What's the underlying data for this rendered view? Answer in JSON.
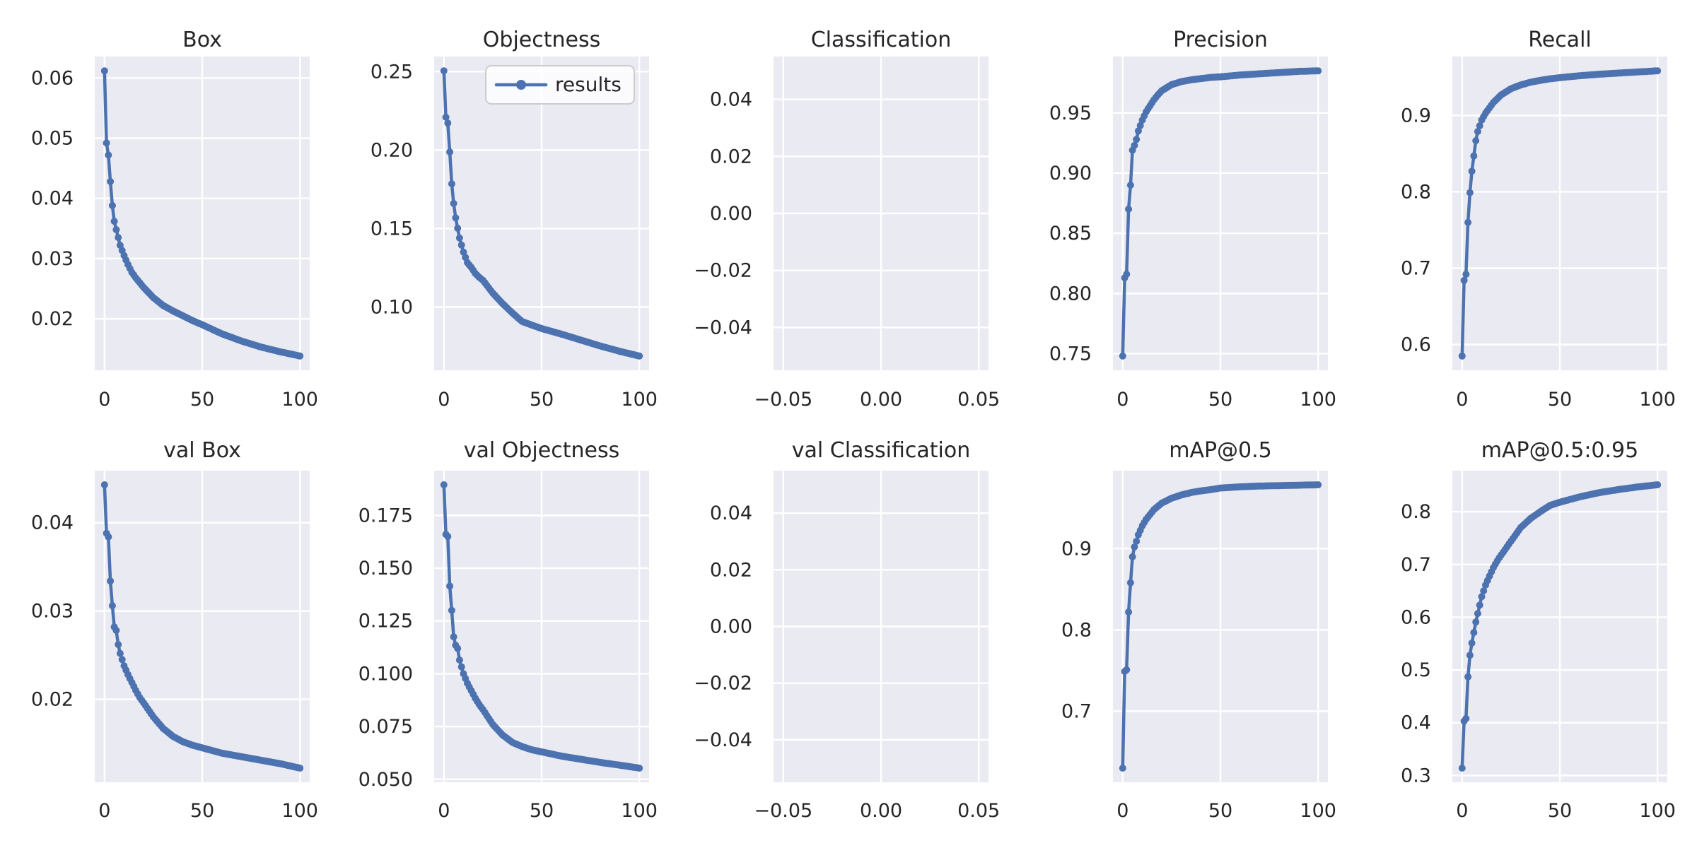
{
  "figure": {
    "kind": "training-results-figure",
    "rows": 2,
    "cols": 5,
    "background": "#ffffff"
  },
  "colors": {
    "line": "#4c72b0",
    "axes_background": "#eaeaf2",
    "grid": "#ffffff",
    "text": "#262626",
    "legend_border": "#cccccc",
    "legend_fill": "rgba(255,255,255,0.8)"
  },
  "legend": {
    "label": "results"
  },
  "chart_data": [
    {
      "id": "box",
      "type": "line",
      "title": "Box",
      "row": 0,
      "col": 0,
      "xlim": [
        -5,
        105
      ],
      "ylim": [
        0.01143,
        0.06357
      ],
      "xticks": {
        "values": [
          0,
          50,
          100
        ],
        "labels": [
          "0",
          "50",
          "100"
        ]
      },
      "yticks": {
        "values": [
          0.02,
          0.03,
          0.04,
          0.05,
          0.06
        ],
        "labels": [
          "0.02",
          "0.03",
          "0.04",
          "0.05",
          "0.06"
        ]
      },
      "legend": false,
      "series": [
        {
          "name": "results",
          "n_points": 101,
          "x": [
            0,
            1,
            2,
            3,
            4,
            5,
            6,
            7,
            8,
            10,
            12,
            14,
            16,
            18,
            20,
            25,
            30,
            35,
            40,
            45,
            50,
            60,
            70,
            80,
            90,
            100
          ],
          "y": [
            0.0612,
            0.0492,
            0.0472,
            0.0428,
            0.0388,
            0.0362,
            0.0348,
            0.0335,
            0.0322,
            0.0305,
            0.029,
            0.0277,
            0.0268,
            0.026,
            0.0252,
            0.0235,
            0.0222,
            0.0213,
            0.0205,
            0.0197,
            0.019,
            0.0175,
            0.0163,
            0.0153,
            0.0145,
            0.0138
          ]
        }
      ]
    },
    {
      "id": "objectness",
      "type": "line",
      "title": "Objectness",
      "row": 0,
      "col": 1,
      "xlim": [
        -5,
        105
      ],
      "ylim": [
        0.059715,
        0.259585
      ],
      "xticks": {
        "values": [
          0,
          50,
          100
        ],
        "labels": [
          "0",
          "50",
          "100"
        ]
      },
      "yticks": {
        "values": [
          0.1,
          0.15,
          0.2,
          0.25
        ],
        "labels": [
          "0.10",
          "0.15",
          "0.20",
          "0.25"
        ]
      },
      "legend": true,
      "series": [
        {
          "name": "results",
          "n_points": 101,
          "x": [
            0,
            1,
            2,
            3,
            4,
            5,
            6,
            7,
            8,
            10,
            12,
            14,
            16,
            18,
            20,
            25,
            30,
            35,
            40,
            45,
            50,
            60,
            70,
            80,
            90,
            100
          ],
          "y": [
            0.2505,
            0.2209,
            0.2172,
            0.1988,
            0.1785,
            0.166,
            0.1568,
            0.1502,
            0.144,
            0.135,
            0.1283,
            0.1253,
            0.1215,
            0.119,
            0.117,
            0.1089,
            0.1022,
            0.0963,
            0.0908,
            0.0885,
            0.0863,
            0.0828,
            0.079,
            0.0752,
            0.0718,
            0.0688
          ]
        }
      ]
    },
    {
      "id": "classification",
      "type": "line",
      "title": "Classification",
      "row": 0,
      "col": 2,
      "xlim": [
        -0.055,
        0.055
      ],
      "ylim": [
        -0.055,
        0.055
      ],
      "xticks": {
        "values": [
          -0.05,
          0.0,
          0.05
        ],
        "labels": [
          "−0.05",
          "0.00",
          "0.05"
        ]
      },
      "yticks": {
        "values": [
          -0.04,
          -0.02,
          0.0,
          0.02,
          0.04
        ],
        "labels": [
          "−0.04",
          "−0.02",
          "0.00",
          "0.02",
          "0.04"
        ]
      },
      "legend": false,
      "series": []
    },
    {
      "id": "precision",
      "type": "line",
      "title": "Precision",
      "row": 0,
      "col": 3,
      "xlim": [
        -5,
        105
      ],
      "ylim": [
        0.73615,
        0.99685
      ],
      "xticks": {
        "values": [
          0,
          50,
          100
        ],
        "labels": [
          "0",
          "50",
          "100"
        ]
      },
      "yticks": {
        "values": [
          0.75,
          0.8,
          0.85,
          0.9,
          0.95
        ],
        "labels": [
          "0.75",
          "0.80",
          "0.85",
          "0.90",
          "0.95"
        ]
      },
      "legend": false,
      "series": [
        {
          "name": "results",
          "n_points": 101,
          "x": [
            0,
            1,
            2,
            3,
            4,
            5,
            6,
            7,
            8,
            10,
            12,
            14,
            16,
            18,
            20,
            25,
            30,
            35,
            40,
            45,
            50,
            60,
            70,
            80,
            90,
            100
          ],
          "y": [
            0.748,
            0.813,
            0.816,
            0.87,
            0.89,
            0.919,
            0.923,
            0.928,
            0.935,
            0.944,
            0.951,
            0.956,
            0.961,
            0.965,
            0.9685,
            0.9735,
            0.976,
            0.9775,
            0.9785,
            0.9795,
            0.98,
            0.9815,
            0.9825,
            0.9835,
            0.9845,
            0.985
          ]
        }
      ]
    },
    {
      "id": "recall",
      "type": "line",
      "title": "Recall",
      "row": 0,
      "col": 4,
      "xlim": [
        -5,
        105
      ],
      "ylim": [
        0.566325,
        0.977175
      ],
      "xticks": {
        "values": [
          0,
          50,
          100
        ],
        "labels": [
          "0",
          "50",
          "100"
        ]
      },
      "yticks": {
        "values": [
          0.6,
          0.7,
          0.8,
          0.9
        ],
        "labels": [
          "0.6",
          "0.7",
          "0.8",
          "0.9"
        ]
      },
      "legend": false,
      "series": [
        {
          "name": "results",
          "n_points": 101,
          "x": [
            0,
            1,
            2,
            3,
            4,
            5,
            6,
            7,
            8,
            10,
            12,
            14,
            16,
            18,
            20,
            25,
            30,
            35,
            40,
            45,
            50,
            60,
            70,
            80,
            90,
            100
          ],
          "y": [
            0.585,
            0.684,
            0.692,
            0.76,
            0.799,
            0.827,
            0.847,
            0.867,
            0.879,
            0.894,
            0.903,
            0.91,
            0.917,
            0.922,
            0.927,
            0.935,
            0.94,
            0.9435,
            0.946,
            0.948,
            0.9495,
            0.952,
            0.954,
            0.9555,
            0.957,
            0.9585
          ]
        }
      ]
    },
    {
      "id": "val-box",
      "type": "line",
      "title": "val Box",
      "row": 1,
      "col": 0,
      "xlim": [
        -5,
        105
      ],
      "ylim": [
        0.010595,
        0.045905
      ],
      "xticks": {
        "values": [
          0,
          50,
          100
        ],
        "labels": [
          "0",
          "50",
          "100"
        ]
      },
      "yticks": {
        "values": [
          0.02,
          0.03,
          0.04
        ],
        "labels": [
          "0.02",
          "0.03",
          "0.04"
        ]
      },
      "legend": false,
      "series": [
        {
          "name": "results",
          "n_points": 101,
          "x": [
            0,
            1,
            2,
            3,
            4,
            5,
            6,
            7,
            8,
            10,
            12,
            14,
            16,
            18,
            20,
            25,
            30,
            35,
            40,
            45,
            50,
            60,
            70,
            80,
            90,
            100
          ],
          "y": [
            0.0443,
            0.0388,
            0.0384,
            0.0334,
            0.0306,
            0.0282,
            0.0278,
            0.0262,
            0.0252,
            0.0238,
            0.0228,
            0.0219,
            0.021,
            0.0202,
            0.0196,
            0.018,
            0.0167,
            0.0158,
            0.0152,
            0.0148,
            0.0145,
            0.0139,
            0.0135,
            0.0131,
            0.0127,
            0.0122
          ]
        }
      ]
    },
    {
      "id": "val-objectness",
      "type": "line",
      "title": "val Objectness",
      "row": 1,
      "col": 1,
      "xlim": [
        -5,
        105
      ],
      "ylim": [
        0.04859,
        0.19621
      ],
      "xticks": {
        "values": [
          0,
          50,
          100
        ],
        "labels": [
          "0",
          "50",
          "100"
        ]
      },
      "yticks": {
        "values": [
          0.05,
          0.075,
          0.1,
          0.125,
          0.15,
          0.175
        ],
        "labels": [
          "0.050",
          "0.075",
          "0.100",
          "0.125",
          "0.150",
          "0.175"
        ]
      },
      "legend": false,
      "series": [
        {
          "name": "results",
          "n_points": 101,
          "x": [
            0,
            1,
            2,
            3,
            4,
            5,
            6,
            7,
            8,
            10,
            12,
            14,
            16,
            18,
            20,
            25,
            30,
            35,
            40,
            45,
            50,
            60,
            70,
            80,
            90,
            100
          ],
          "y": [
            0.1895,
            0.166,
            0.165,
            0.1415,
            0.13,
            0.1175,
            0.1135,
            0.112,
            0.1065,
            0.1,
            0.0955,
            0.092,
            0.0885,
            0.0855,
            0.083,
            0.076,
            0.071,
            0.0675,
            0.0655,
            0.064,
            0.063,
            0.061,
            0.0595,
            0.058,
            0.0567,
            0.0553
          ]
        }
      ]
    },
    {
      "id": "val-classification",
      "type": "line",
      "title": "val Classification",
      "row": 1,
      "col": 2,
      "xlim": [
        -0.055,
        0.055
      ],
      "ylim": [
        -0.055,
        0.055
      ],
      "xticks": {
        "values": [
          -0.05,
          0.0,
          0.05
        ],
        "labels": [
          "−0.05",
          "0.00",
          "0.05"
        ]
      },
      "yticks": {
        "values": [
          -0.04,
          -0.02,
          0.0,
          0.02,
          0.04
        ],
        "labels": [
          "−0.04",
          "−0.02",
          "0.00",
          "0.02",
          "0.04"
        ]
      },
      "legend": false,
      "series": []
    },
    {
      "id": "map50",
      "type": "line",
      "title": "mAP@0.5",
      "row": 1,
      "col": 3,
      "xlim": [
        -5,
        105
      ],
      "ylim": [
        0.612575,
        0.995925
      ],
      "xticks": {
        "values": [
          0,
          50,
          100
        ],
        "labels": [
          "0",
          "50",
          "100"
        ]
      },
      "yticks": {
        "values": [
          0.7,
          0.8,
          0.9
        ],
        "labels": [
          "0.7",
          "0.8",
          "0.9"
        ]
      },
      "legend": false,
      "series": [
        {
          "name": "results",
          "n_points": 101,
          "x": [
            0,
            1,
            2,
            3,
            4,
            5,
            6,
            7,
            8,
            10,
            12,
            14,
            16,
            18,
            20,
            25,
            30,
            35,
            40,
            45,
            50,
            60,
            70,
            80,
            90,
            100
          ],
          "y": [
            0.63,
            0.749,
            0.751,
            0.822,
            0.858,
            0.89,
            0.902,
            0.909,
            0.917,
            0.928,
            0.936,
            0.942,
            0.948,
            0.952,
            0.956,
            0.962,
            0.966,
            0.969,
            0.971,
            0.9725,
            0.9745,
            0.976,
            0.977,
            0.9775,
            0.978,
            0.9785
          ]
        }
      ]
    },
    {
      "id": "map50-95",
      "type": "line",
      "title": "mAP@0.5:0.95",
      "row": 1,
      "col": 4,
      "xlim": [
        -5,
        105
      ],
      "ylim": [
        0.28715,
        0.87785
      ],
      "xticks": {
        "values": [
          0,
          50,
          100
        ],
        "labels": [
          "0",
          "50",
          "100"
        ]
      },
      "yticks": {
        "values": [
          0.3,
          0.4,
          0.5,
          0.6,
          0.7,
          0.8
        ],
        "labels": [
          "0.3",
          "0.4",
          "0.5",
          "0.6",
          "0.7",
          "0.8"
        ]
      },
      "legend": false,
      "series": [
        {
          "name": "results",
          "n_points": 101,
          "x": [
            0,
            1,
            2,
            3,
            4,
            5,
            6,
            7,
            8,
            10,
            12,
            14,
            16,
            18,
            20,
            25,
            30,
            35,
            40,
            45,
            50,
            60,
            70,
            80,
            90,
            100
          ],
          "y": [
            0.314,
            0.403,
            0.408,
            0.487,
            0.528,
            0.551,
            0.571,
            0.591,
            0.607,
            0.639,
            0.661,
            0.678,
            0.694,
            0.707,
            0.718,
            0.744,
            0.77,
            0.787,
            0.8,
            0.812,
            0.818,
            0.828,
            0.836,
            0.842,
            0.847,
            0.851
          ]
        }
      ]
    }
  ]
}
